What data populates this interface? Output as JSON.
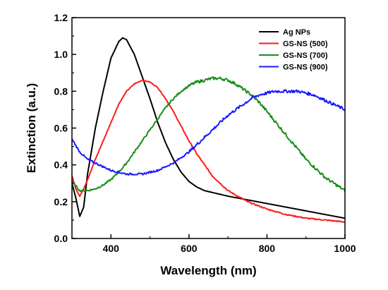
{
  "chart_data": {
    "type": "line",
    "xlabel": "Wavelength (nm)",
    "ylabel": "Extinction (a.u.)",
    "xlim": [
      300,
      1000
    ],
    "ylim": [
      0.0,
      1.2
    ],
    "xticks": [
      400,
      600,
      800,
      1000
    ],
    "xtick_labels": [
      "400",
      "600",
      "800",
      "1000"
    ],
    "yticks": [
      0.0,
      0.2,
      0.4,
      0.6,
      0.8,
      1.0,
      1.2
    ],
    "ytick_labels": [
      "0.0",
      "0.2",
      "0.4",
      "0.6",
      "0.8",
      "1.0",
      "1.2"
    ],
    "grid": false,
    "legend_position": "top-right",
    "series": [
      {
        "name": "Ag NPs",
        "color": "#000000",
        "x": [
          300,
          310,
          320,
          330,
          340,
          360,
          380,
          400,
          420,
          430,
          440,
          460,
          480,
          500,
          520,
          540,
          560,
          580,
          600,
          620,
          640,
          660,
          680,
          700,
          750,
          800,
          850,
          900,
          950,
          1000
        ],
        "y": [
          0.3,
          0.22,
          0.12,
          0.17,
          0.35,
          0.6,
          0.8,
          0.98,
          1.07,
          1.09,
          1.08,
          1.0,
          0.88,
          0.76,
          0.63,
          0.52,
          0.43,
          0.36,
          0.31,
          0.28,
          0.26,
          0.25,
          0.24,
          0.23,
          0.21,
          0.19,
          0.17,
          0.15,
          0.13,
          0.11
        ]
      },
      {
        "name": "GS-NS (500)",
        "color": "#ff1a1a",
        "x": [
          300,
          310,
          320,
          330,
          340,
          360,
          380,
          400,
          420,
          440,
          460,
          480,
          500,
          520,
          540,
          560,
          580,
          600,
          620,
          640,
          660,
          680,
          700,
          750,
          800,
          850,
          900,
          950,
          1000
        ],
        "y": [
          0.34,
          0.27,
          0.23,
          0.27,
          0.32,
          0.43,
          0.53,
          0.63,
          0.73,
          0.8,
          0.84,
          0.86,
          0.85,
          0.82,
          0.76,
          0.69,
          0.61,
          0.53,
          0.46,
          0.4,
          0.34,
          0.3,
          0.26,
          0.2,
          0.16,
          0.13,
          0.11,
          0.1,
          0.09
        ]
      },
      {
        "name": "GS-NS (700)",
        "color": "#1a8c1a",
        "x": [
          300,
          320,
          340,
          360,
          380,
          400,
          420,
          440,
          460,
          480,
          500,
          520,
          540,
          560,
          580,
          600,
          620,
          640,
          660,
          680,
          700,
          720,
          740,
          760,
          780,
          800,
          850,
          900,
          950,
          1000
        ],
        "y": [
          0.31,
          0.26,
          0.26,
          0.27,
          0.29,
          0.32,
          0.36,
          0.41,
          0.47,
          0.53,
          0.59,
          0.65,
          0.71,
          0.76,
          0.8,
          0.83,
          0.85,
          0.86,
          0.87,
          0.87,
          0.86,
          0.84,
          0.81,
          0.78,
          0.74,
          0.69,
          0.56,
          0.43,
          0.33,
          0.26
        ]
      },
      {
        "name": "GS-NS (900)",
        "color": "#1a1aff",
        "x": [
          300,
          320,
          340,
          360,
          380,
          400,
          420,
          440,
          460,
          480,
          500,
          520,
          540,
          560,
          580,
          600,
          620,
          640,
          660,
          680,
          700,
          720,
          740,
          760,
          780,
          800,
          820,
          840,
          860,
          880,
          900,
          920,
          940,
          960,
          980,
          1000
        ],
        "y": [
          0.54,
          0.47,
          0.43,
          0.41,
          0.39,
          0.37,
          0.36,
          0.35,
          0.35,
          0.35,
          0.36,
          0.37,
          0.39,
          0.41,
          0.44,
          0.47,
          0.51,
          0.55,
          0.59,
          0.63,
          0.67,
          0.7,
          0.73,
          0.76,
          0.78,
          0.79,
          0.8,
          0.8,
          0.8,
          0.8,
          0.79,
          0.78,
          0.76,
          0.74,
          0.72,
          0.7
        ]
      }
    ]
  }
}
